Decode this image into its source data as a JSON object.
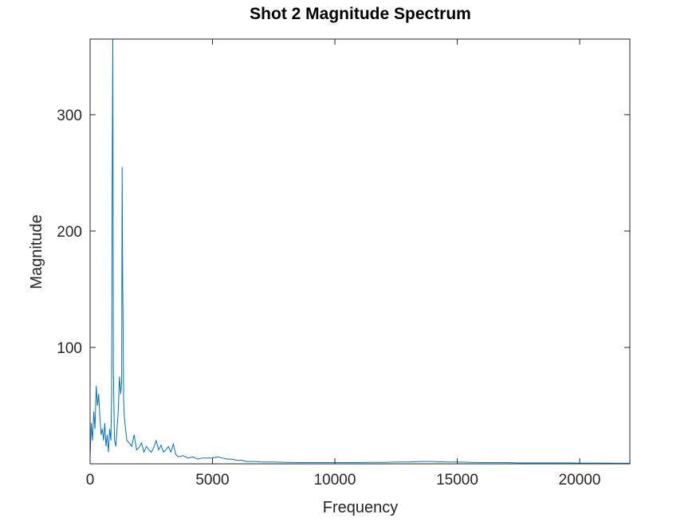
{
  "chart_data": {
    "type": "line",
    "title": "Shot 2 Magnitude Spectrum",
    "xlabel": "Frequency",
    "ylabel": "Magnitude",
    "xlim": [
      0,
      22050
    ],
    "ylim": [
      0,
      365
    ],
    "xticks": [
      0,
      5000,
      10000,
      15000,
      20000
    ],
    "xtick_labels": [
      "0",
      "5000",
      "10000",
      "15000",
      "20000"
    ],
    "yticks": [
      100,
      200,
      300
    ],
    "ytick_labels": [
      "100",
      "200",
      "300"
    ],
    "grid": false,
    "line_color": "#0072BD",
    "series": [
      {
        "x": [
          0,
          50,
          100,
          150,
          200,
          250,
          300,
          350,
          400,
          450,
          500,
          550,
          600,
          650,
          700,
          750,
          800,
          850,
          880,
          900,
          930,
          950,
          980,
          1000,
          1050,
          1100,
          1150,
          1200,
          1250,
          1290,
          1310,
          1330,
          1350,
          1370,
          1400,
          1450,
          1500,
          1600,
          1700,
          1800,
          1900,
          2000,
          2100,
          2200,
          2300,
          2400,
          2500,
          2600,
          2700,
          2800,
          2900,
          3000,
          3100,
          3200,
          3300,
          3400,
          3500,
          3600,
          3800,
          4000,
          4200,
          4400,
          4600,
          4800,
          5000,
          5200,
          5400,
          5600,
          5800,
          6000,
          6200,
          6400,
          6600,
          6800,
          7000,
          7500,
          8000,
          8500,
          9000,
          9500,
          10000,
          10500,
          11000,
          11500,
          12000,
          12500,
          13000,
          13500,
          14000,
          14500,
          15000,
          15500,
          16000,
          16500,
          17000,
          17500,
          18000,
          18500,
          19000,
          19500,
          20000,
          20500,
          21000,
          21500,
          22050
        ],
        "values": [
          5,
          35,
          20,
          45,
          30,
          67,
          50,
          60,
          40,
          25,
          30,
          20,
          35,
          15,
          25,
          10,
          30,
          20,
          60,
          230,
          365,
          85,
          40,
          20,
          15,
          30,
          45,
          75,
          60,
          70,
          255,
          160,
          120,
          55,
          40,
          30,
          20,
          18,
          15,
          25,
          12,
          14,
          18,
          10,
          15,
          12,
          10,
          14,
          20,
          12,
          16,
          10,
          12,
          15,
          10,
          17,
          8,
          6,
          7,
          5,
          6,
          4,
          5,
          5,
          5,
          6,
          5,
          4,
          4,
          3,
          3,
          2,
          2,
          2,
          1.5,
          1.5,
          1.2,
          1,
          1,
          1,
          1,
          1,
          1,
          1.2,
          1.2,
          1.5,
          1.5,
          2,
          2,
          1.5,
          1.5,
          1.2,
          1,
          1,
          1,
          0.8,
          0.8,
          0.8,
          0.8,
          0.8,
          0.6,
          0.6,
          0.6,
          0.5,
          0.5
        ]
      }
    ]
  }
}
